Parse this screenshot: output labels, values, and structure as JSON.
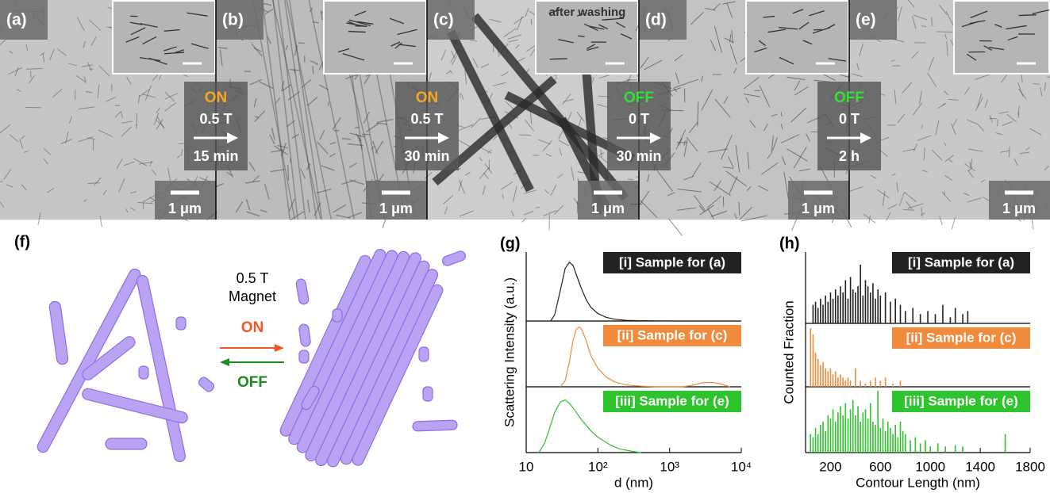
{
  "micrographs": {
    "panels": [
      {
        "label": "(a)",
        "scale_bar": "1 μm"
      },
      {
        "label": "(b)",
        "scale_bar": "1 μm"
      },
      {
        "label": "(c)",
        "scale_bar": "1 μm",
        "inset_label": "after washing"
      },
      {
        "label": "(d)",
        "scale_bar": "1 μm"
      },
      {
        "label": "(e)",
        "scale_bar": "1 μm"
      }
    ],
    "transitions": [
      {
        "state": "ON",
        "color": "#f5a623",
        "field": "0.5 T",
        "time": "15 min"
      },
      {
        "state": "ON",
        "color": "#f5a623",
        "field": "0.5 T",
        "time": "30 min"
      },
      {
        "state": "OFF",
        "color": "#33e033",
        "field": "0 T",
        "time": "30 min"
      },
      {
        "state": "OFF",
        "color": "#33e033",
        "field": "0 T",
        "time": "2 h"
      }
    ]
  },
  "schematic": {
    "label": "(f)",
    "field": "0.5 T",
    "device": "Magnet",
    "on": "ON",
    "off": "OFF"
  },
  "chart_data": [
    {
      "type": "line",
      "label": "(g)",
      "xlabel": "d (nm)",
      "ylabel": "Scattering Intensity (a.u.)",
      "xscale": "log",
      "xlim": [
        10,
        10000
      ],
      "xticks": [
        10,
        {
          "value": 100,
          "label": "10²"
        },
        {
          "value": 1000,
          "label": "10³"
        },
        {
          "value": 10000,
          "label": "10⁴"
        }
      ],
      "ylim": [
        0,
        1
      ],
      "series": [
        {
          "name": "[i] Sample for (a)",
          "color": "#222222",
          "x": [
            22,
            25,
            30,
            35,
            40,
            45,
            50,
            60,
            70,
            80,
            100,
            130,
            170,
            250,
            400,
            700,
            1000
          ],
          "values": [
            0,
            0.1,
            0.5,
            0.85,
            0.95,
            0.9,
            0.75,
            0.5,
            0.33,
            0.22,
            0.12,
            0.06,
            0.03,
            0.01,
            0.005,
            0.002,
            0
          ]
        },
        {
          "name": "[ii] Sample for (c)",
          "color": "#f08a3c",
          "x": [
            30,
            35,
            40,
            45,
            50,
            55,
            60,
            70,
            80,
            100,
            130,
            170,
            250,
            400,
            700,
            1000,
            1500,
            2000,
            3000,
            4000,
            5000,
            7000
          ],
          "values": [
            0,
            0.1,
            0.4,
            0.75,
            0.93,
            0.97,
            0.92,
            0.72,
            0.5,
            0.3,
            0.16,
            0.08,
            0.03,
            0.01,
            0,
            0,
            0,
            0.02,
            0.07,
            0.07,
            0.05,
            0
          ]
        },
        {
          "name": "[iii] Sample for (e)",
          "color": "#2ec42e",
          "x": [
            15,
            18,
            20,
            25,
            30,
            35,
            40,
            50,
            60,
            80,
            100,
            150,
            200,
            300,
            400
          ],
          "values": [
            0,
            0.15,
            0.3,
            0.65,
            0.82,
            0.85,
            0.8,
            0.65,
            0.52,
            0.35,
            0.25,
            0.12,
            0.06,
            0.02,
            0
          ]
        }
      ]
    },
    {
      "type": "bar",
      "label": "(h)",
      "xlabel": "Contour Length (nm)",
      "ylabel": "Counted Fraction",
      "xlim": [
        0,
        1800
      ],
      "xticks": [
        200,
        600,
        1000,
        1400,
        1800
      ],
      "ylim": [
        0,
        1
      ],
      "series": [
        {
          "name": "[i] Sample for (a)",
          "color": "#222222",
          "x": [
            60,
            80,
            100,
            120,
            140,
            160,
            180,
            200,
            220,
            240,
            260,
            280,
            300,
            320,
            340,
            360,
            380,
            400,
            420,
            440,
            460,
            480,
            500,
            520,
            540,
            560,
            580,
            600,
            640,
            680,
            720,
            760,
            800,
            860,
            920,
            980,
            1040,
            1100,
            1160,
            1200,
            1260,
            1300
          ],
          "values": [
            0.3,
            0.35,
            0.25,
            0.4,
            0.3,
            0.45,
            0.35,
            0.5,
            0.4,
            0.55,
            0.45,
            0.6,
            0.5,
            0.7,
            0.4,
            0.75,
            0.55,
            0.5,
            0.6,
            0.95,
            0.45,
            0.7,
            0.6,
            0.5,
            0.65,
            0.4,
            0.55,
            0.45,
            0.5,
            0.35,
            0.4,
            0.3,
            0.2,
            0.25,
            0.15,
            0.2,
            0.15,
            0.3,
            0.1,
            0.25,
            0.15,
            0.2
          ]
        },
        {
          "name": "[ii] Sample for (c)",
          "color": "#f08a3c",
          "x": [
            40,
            60,
            80,
            100,
            120,
            140,
            160,
            180,
            200,
            220,
            240,
            260,
            280,
            300,
            320,
            340,
            360,
            400,
            440,
            480,
            520,
            560,
            600,
            640,
            700,
            760
          ],
          "values": [
            0.95,
            0.85,
            0.55,
            0.45,
            0.35,
            0.4,
            0.3,
            0.25,
            0.3,
            0.2,
            0.25,
            0.15,
            0.2,
            0.15,
            0.1,
            0.15,
            0.1,
            0.3,
            0.1,
            0.05,
            0.1,
            0.15,
            0.1,
            0.15,
            0.05,
            0.1
          ]
        },
        {
          "name": "[iii] Sample for (e)",
          "color": "#2ec42e",
          "x": [
            40,
            60,
            80,
            100,
            120,
            140,
            160,
            180,
            200,
            220,
            240,
            260,
            280,
            300,
            320,
            340,
            360,
            380,
            400,
            420,
            440,
            460,
            480,
            500,
            520,
            540,
            560,
            580,
            600,
            620,
            640,
            660,
            680,
            700,
            720,
            740,
            760,
            780,
            800,
            840,
            880,
            920,
            960,
            1000,
            1060,
            1120,
            1200,
            1260,
            1600
          ],
          "values": [
            0.3,
            0.25,
            0.4,
            0.3,
            0.45,
            0.5,
            0.35,
            0.6,
            0.55,
            0.7,
            0.5,
            0.65,
            0.75,
            0.6,
            0.8,
            0.55,
            0.7,
            0.85,
            0.6,
            0.75,
            0.5,
            0.65,
            0.7,
            0.55,
            0.8,
            0.5,
            0.45,
            1.0,
            0.4,
            0.55,
            0.35,
            0.5,
            0.4,
            0.3,
            0.45,
            0.25,
            0.5,
            0.35,
            0.3,
            0.2,
            0.25,
            0.15,
            0.2,
            0.1,
            0.15,
            0.1,
            0.12,
            0.1,
            0.3
          ]
        }
      ]
    }
  ]
}
